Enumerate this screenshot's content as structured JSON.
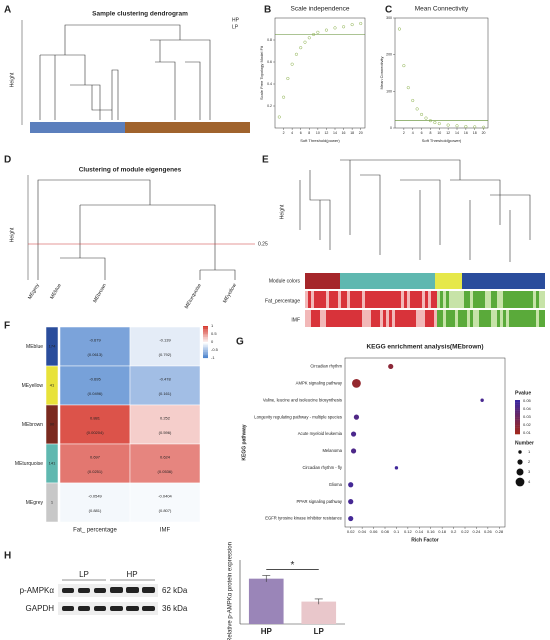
{
  "figure": {
    "panels": [
      "A",
      "B",
      "C",
      "D",
      "E",
      "F",
      "G",
      "H"
    ],
    "panel_a": {
      "title": "Sample clustering dendrogram",
      "ylabel": "Height",
      "legend": [
        "HP",
        "LP"
      ]
    },
    "panel_d": {
      "title": "Clustering of module eigengenes",
      "ylabel": "Height",
      "cut_label": "0.25",
      "leaves": [
        "MEgrey",
        "MEblue",
        "MEbrown",
        "MEturquoise",
        "MEyellow"
      ]
    },
    "panel_e": {
      "ylabel": "Height",
      "tracks": [
        "Module colors",
        "Fat_percentage",
        "IMF"
      ]
    },
    "panel_h": {
      "proteins": [
        "p-AMPKα",
        "GAPDH"
      ],
      "sizes": [
        "62 kDa",
        "36 kDa"
      ],
      "groups": [
        "LP",
        "HP"
      ]
    }
  },
  "chart_data": [
    {
      "type": "scatter",
      "title": "Scale independence",
      "xlabel": "Soft Threshold(power)",
      "ylabel": "Scale Free Topology Model Fit",
      "x": [
        1,
        2,
        3,
        4,
        5,
        6,
        7,
        8,
        9,
        10,
        12,
        14,
        16,
        18,
        20
      ],
      "values": [
        0.1,
        0.28,
        0.45,
        0.58,
        0.67,
        0.73,
        0.78,
        0.82,
        0.85,
        0.87,
        0.89,
        0.91,
        0.92,
        0.94,
        0.95
      ],
      "xlim": [
        0,
        21
      ],
      "ylim": [
        0,
        1
      ],
      "xticks": [
        2,
        4,
        6,
        8,
        10,
        12,
        14,
        16,
        18,
        20
      ],
      "yticks": [
        0.2,
        0.4,
        0.6,
        0.8
      ],
      "hline": 0.85,
      "color": "#8ab04a",
      "line_color": "#5a8a2a"
    },
    {
      "type": "scatter",
      "title": "Mean Connectivity",
      "xlabel": "Soft Threshold(power)",
      "ylabel": "Mean Connectivity",
      "x": [
        1,
        2,
        3,
        4,
        5,
        6,
        7,
        8,
        9,
        10,
        12,
        14,
        16,
        18,
        20
      ],
      "values": [
        270,
        170,
        110,
        75,
        52,
        37,
        27,
        20,
        15,
        12,
        8,
        6,
        4,
        3,
        2
      ],
      "xlim": [
        0,
        21
      ],
      "ylim": [
        0,
        300
      ],
      "xticks": [
        2,
        4,
        6,
        8,
        10,
        12,
        14,
        16,
        18,
        20
      ],
      "yticks": [
        0,
        100,
        200,
        300
      ],
      "hline": 20,
      "color": "#8ab04a",
      "line_color": "#5a8a2a"
    },
    {
      "type": "heatmap",
      "rows": [
        "MEblue",
        "MEyellow",
        "MEbrown",
        "MEturquoise",
        "MEgrey"
      ],
      "row_sizes": [
        174,
        41,
        90,
        141,
        1
      ],
      "row_colors": [
        "#2a4d9c",
        "#e8e23a",
        "#7a2a1f",
        "#5fb8b0",
        "#c8c8c8"
      ],
      "columns": [
        "Fat_ percentage",
        "IMF"
      ],
      "r": [
        [
          -0.679,
          -0.139
        ],
        [
          -0.695,
          -0.478
        ],
        [
          0.881,
          0.252
        ],
        [
          0.697,
          0.624
        ],
        [
          -0.0549,
          -0.0404
        ]
      ],
      "p": [
        [
          0.0613,
          0.792
        ],
        [
          0.0496,
          0.161
        ],
        [
          0.00204,
          0.596
        ],
        [
          0.0251,
          0.0536
        ],
        [
          0.881,
          0.807
        ]
      ],
      "p_labels": [
        [
          "(0.0613)",
          "(0.792)"
        ],
        [
          "(0.0496)",
          "(0.161)"
        ],
        [
          "(0.00204)",
          "(0.596)"
        ],
        [
          "(0.0251)",
          "(0.0536)"
        ],
        [
          "(0.881)",
          "(0.807)"
        ]
      ],
      "legend_ticks": [
        1,
        0.5,
        0,
        -0.5,
        -1
      ]
    },
    {
      "type": "dot",
      "title": "KEGG enrichment analysis(MEbrown)",
      "xlabel": "Rich Factor",
      "ylabel": "KEGG pathway",
      "categories": [
        "Circadian rhythm",
        "AMPK signaling pathway",
        "Valine, leucine and isoleucine biosynthesis",
        "Longevity regulating pathway - multiple species",
        "Acute myeloid leukemia",
        "Melanoma",
        "Circadian rhythm - fly",
        "Glioma",
        "PPAR signaling pathway",
        "EGFR tyrosine kinase inhibitor resistance"
      ],
      "x": [
        0.09,
        0.03,
        0.25,
        0.03,
        0.025,
        0.025,
        0.1,
        0.02,
        0.02,
        0.02
      ],
      "pvalue": [
        0.018,
        0.015,
        0.045,
        0.042,
        0.044,
        0.043,
        0.048,
        0.047,
        0.046,
        0.047
      ],
      "number": [
        2,
        4,
        1,
        2,
        2,
        2,
        1,
        2,
        2,
        2
      ],
      "xlim": [
        0.01,
        0.29
      ],
      "xticks": [
        0.02,
        0.04,
        0.06,
        0.08,
        0.1,
        0.12,
        0.14,
        0.16,
        0.18,
        0.2,
        0.22,
        0.24,
        0.26,
        0.28
      ],
      "pvalue_title": "Pvalue",
      "pvalue_ticks": [
        0.05,
        0.04,
        0.03,
        0.02,
        0.01
      ],
      "number_title": "Number",
      "number_ticks": [
        1,
        2,
        3,
        4
      ]
    },
    {
      "type": "bar",
      "ylabel": "Relative p-AMPKα protein expression",
      "categories": [
        "HP",
        "LP"
      ],
      "values": [
        0.85,
        0.42
      ],
      "errors": [
        0.06,
        0.05
      ],
      "colors": [
        "#9a85b8",
        "#e9c7cb"
      ],
      "ylim": [
        0,
        1.2
      ],
      "significance": "*"
    }
  ]
}
